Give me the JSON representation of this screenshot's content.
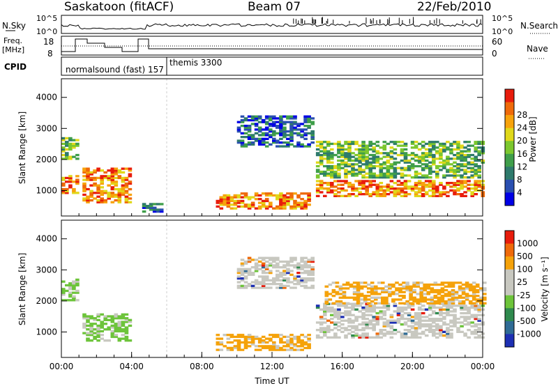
{
  "header": {
    "station": "Saskatoon (fitACF)",
    "beam": "Beam 07",
    "date": "22/Feb/2010"
  },
  "strip_panels": {
    "nsky": {
      "left_label": "N.Sky",
      "left_ticks": [
        "10^5",
        "10^0"
      ],
      "right_label": "N.Search",
      "right_ticks": [
        "10^5",
        "10^0"
      ]
    },
    "freq": {
      "left_label_line1": "Freq.",
      "left_label_line2": "[MHz]",
      "left_ticks": [
        "18",
        "8"
      ],
      "right_label": "Nave",
      "right_ticks": [
        "60",
        "0"
      ]
    },
    "cpid": {
      "label": "CPID",
      "segments": [
        {
          "text": "normalsound (fast) 157",
          "start_hour": 0
        },
        {
          "text": "themis 3300",
          "start_hour": 6.0
        }
      ]
    }
  },
  "chart_data": [
    {
      "type": "heatmap",
      "name": "power",
      "ylabel": "Slant Range [km]",
      "yticks": [
        "1000",
        "2000",
        "3000",
        "4000"
      ],
      "ylim": [
        180,
        4600
      ],
      "xlim_hours": [
        0,
        24
      ],
      "colorbar": {
        "label": "Power [dB]",
        "ticks": [
          "4",
          "8",
          "12",
          "16",
          "20",
          "24",
          "28"
        ],
        "colors": [
          "#0000e6",
          "#2a4fb0",
          "#2e7a6c",
          "#3f9e4a",
          "#7cc72e",
          "#e0d81a",
          "#f7a30c",
          "#ef6a0a",
          "#e81c0c"
        ]
      },
      "echo_regions": [
        {
          "t0": 0.0,
          "t1": 0.9,
          "r0": 900,
          "r1": 1500,
          "level": "high"
        },
        {
          "t0": 0.0,
          "t1": 0.9,
          "r0": 2000,
          "r1": 2700,
          "level": "mid"
        },
        {
          "t0": 1.2,
          "t1": 4.0,
          "r0": 600,
          "r1": 1700,
          "level": "high"
        },
        {
          "t0": 4.6,
          "t1": 5.8,
          "r0": 300,
          "r1": 600,
          "level": "low"
        },
        {
          "t0": 8.8,
          "t1": 14.0,
          "r0": 400,
          "r1": 900,
          "level": "high"
        },
        {
          "t0": 10.0,
          "t1": 14.2,
          "r0": 2400,
          "r1": 3400,
          "level": "low"
        },
        {
          "t0": 14.5,
          "t1": 24.0,
          "r0": 800,
          "r1": 1300,
          "level": "high"
        },
        {
          "t0": 14.5,
          "t1": 24.0,
          "r0": 1400,
          "r1": 2600,
          "level": "mid"
        }
      ]
    },
    {
      "type": "heatmap",
      "name": "velocity",
      "ylabel": "Slant Range [km]",
      "yticks": [
        "1000",
        "2000",
        "3000",
        "4000"
      ],
      "ylim": [
        180,
        4600
      ],
      "xlim_hours": [
        0,
        24
      ],
      "xlabel": "Time UT",
      "xticks": [
        "00:00",
        "04:00",
        "08:00",
        "12:00",
        "16:00",
        "20:00",
        "00:00"
      ],
      "colorbar": {
        "label": "Velocity [m s⁻¹]",
        "ticks": [
          "1000",
          "500",
          "100",
          "25",
          "-25",
          "-100",
          "-500",
          "-1000"
        ],
        "colors": [
          "#1d2fb3",
          "#2f6b95",
          "#2f8a4e",
          "#6dc43a",
          "#c8c8c0",
          "#c8c8c0",
          "#f5a20a",
          "#ef6a0a",
          "#e81c0c"
        ]
      },
      "echo_regions": [
        {
          "t0": 0.0,
          "t1": 0.9,
          "r0": 2000,
          "r1": 2700,
          "level": "green"
        },
        {
          "t0": 1.2,
          "t1": 4.0,
          "r0": 700,
          "r1": 1600,
          "level": "green"
        },
        {
          "t0": 8.8,
          "t1": 14.0,
          "r0": 400,
          "r1": 900,
          "level": "orange"
        },
        {
          "t0": 10.0,
          "t1": 14.2,
          "r0": 2400,
          "r1": 3400,
          "level": "grey"
        },
        {
          "t0": 14.5,
          "t1": 24.0,
          "r0": 800,
          "r1": 1900,
          "level": "grey"
        },
        {
          "t0": 15.0,
          "t1": 24.0,
          "r0": 1900,
          "r1": 2600,
          "level": "orange"
        }
      ]
    }
  ]
}
